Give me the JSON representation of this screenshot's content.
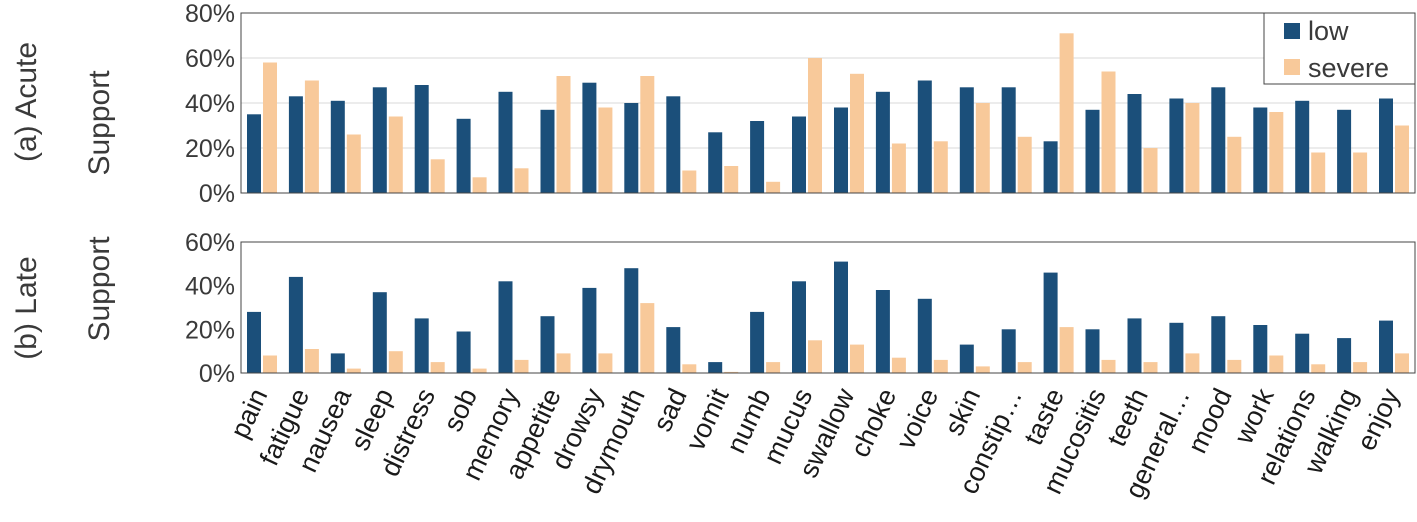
{
  "chart_data": [
    {
      "type": "bar",
      "panel_label": "(a) Acute",
      "ylabel": "Support",
      "ylim": [
        0,
        80
      ],
      "yticks": [
        "0%",
        "20%",
        "40%",
        "60%",
        "80%"
      ],
      "grid": true,
      "legend": {
        "placement": "top-right",
        "entries": [
          "low",
          "severe"
        ]
      },
      "categories": [
        "pain",
        "fatigue",
        "nausea",
        "sleep",
        "distress",
        "sob",
        "memory",
        "appetite",
        "drowsy",
        "drymouth",
        "sad",
        "vomit",
        "numb",
        "mucus",
        "swallow",
        "choke",
        "voice",
        "skin",
        "constip…",
        "taste",
        "mucositis",
        "teeth",
        "general…",
        "mood",
        "work",
        "relations",
        "walking",
        "enjoy"
      ],
      "series": [
        {
          "name": "low",
          "color": "#1b4f7a",
          "values": [
            35,
            43,
            41,
            47,
            48,
            33,
            45,
            37,
            49,
            40,
            43,
            27,
            32,
            34,
            38,
            45,
            50,
            47,
            47,
            23,
            37,
            44,
            42,
            47,
            38,
            41,
            37,
            42
          ]
        },
        {
          "name": "severe",
          "color": "#f8c99a",
          "values": [
            58,
            50,
            26,
            34,
            15,
            7,
            11,
            52,
            38,
            52,
            10,
            12,
            5,
            60,
            53,
            22,
            23,
            40,
            25,
            71,
            54,
            20,
            40,
            25,
            36,
            18,
            18,
            30
          ]
        }
      ]
    },
    {
      "type": "bar",
      "panel_label": "(b) Late",
      "ylabel": "Support",
      "ylim": [
        0,
        60
      ],
      "yticks": [
        "0%",
        "20%",
        "40%",
        "60%"
      ],
      "grid": false,
      "categories": [
        "pain",
        "fatigue",
        "nausea",
        "sleep",
        "distress",
        "sob",
        "memory",
        "appetite",
        "drowsy",
        "drymouth",
        "sad",
        "vomit",
        "numb",
        "mucus",
        "swallow",
        "choke",
        "voice",
        "skin",
        "constip…",
        "taste",
        "mucositis",
        "teeth",
        "general…",
        "mood",
        "work",
        "relations",
        "walking",
        "enjoy"
      ],
      "series": [
        {
          "name": "low",
          "color": "#1b4f7a",
          "values": [
            28,
            44,
            9,
            37,
            25,
            19,
            42,
            26,
            39,
            48,
            21,
            5,
            28,
            42,
            51,
            38,
            34,
            13,
            20,
            46,
            20,
            25,
            23,
            26,
            22,
            18,
            16,
            24
          ]
        },
        {
          "name": "severe",
          "color": "#f8c99a",
          "values": [
            8,
            11,
            2,
            10,
            5,
            2,
            6,
            9,
            9,
            32,
            4,
            0.5,
            5,
            15,
            13,
            7,
            6,
            3,
            5,
            21,
            6,
            5,
            9,
            6,
            8,
            4,
            5,
            9
          ]
        }
      ]
    }
  ]
}
